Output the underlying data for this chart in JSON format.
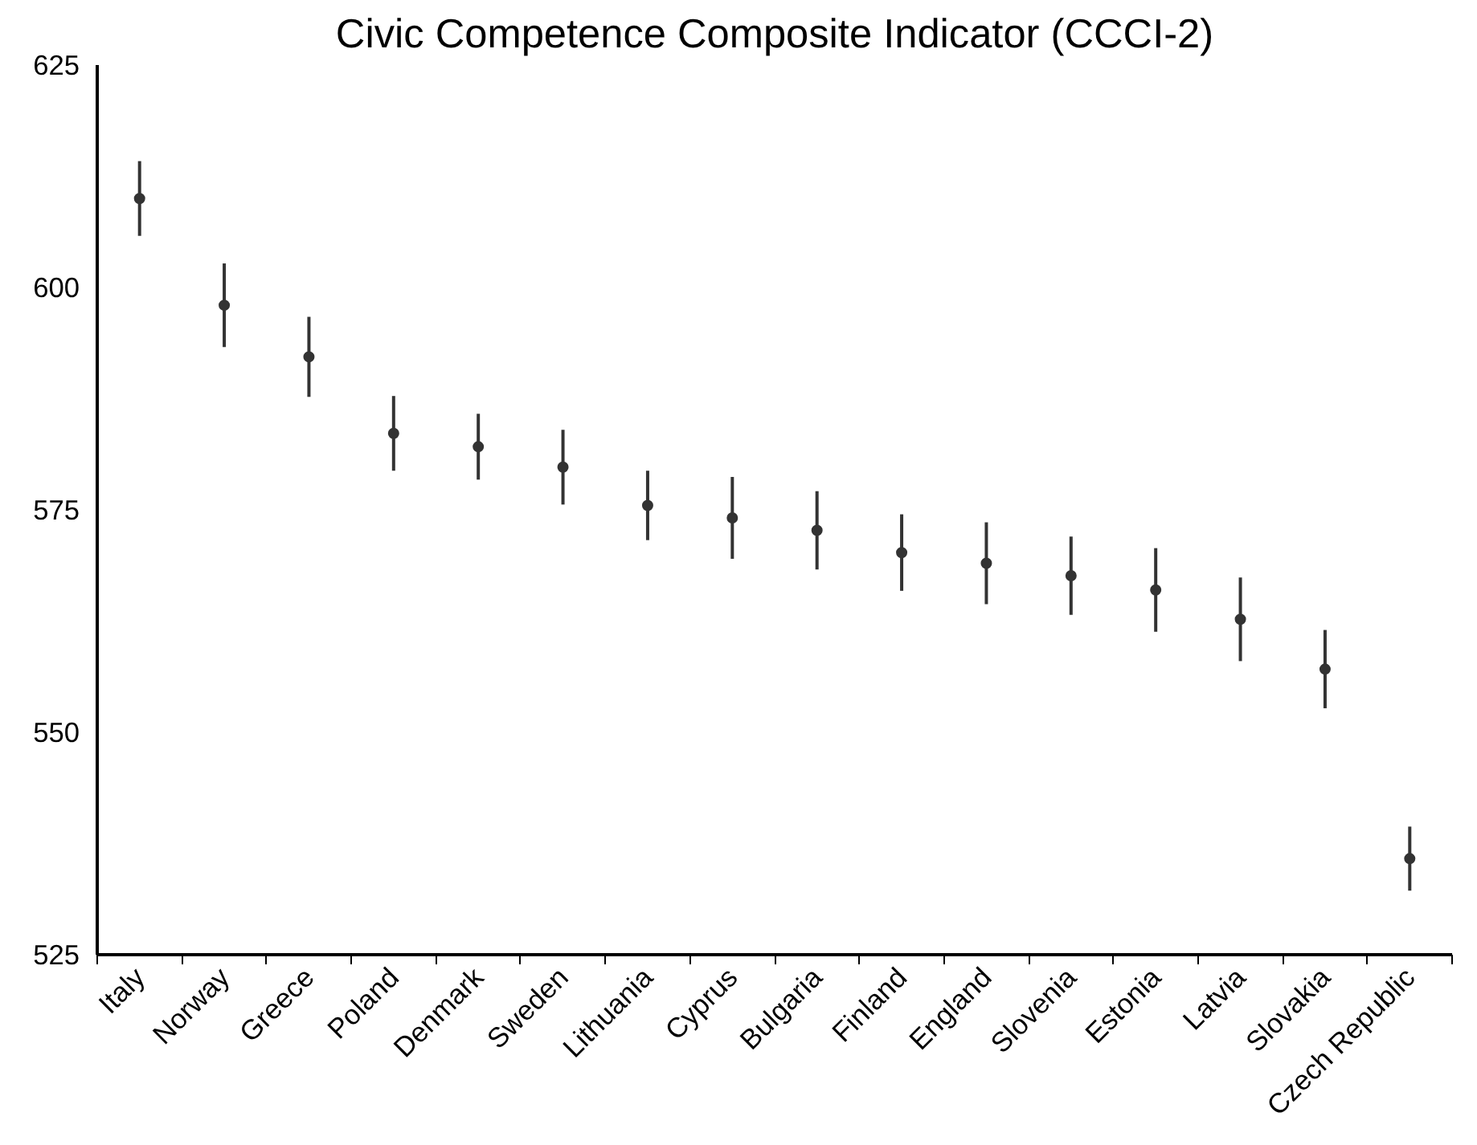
{
  "chart_data": {
    "type": "scatter",
    "title": "Civic Competence Composite Indicator (CCCI-2)",
    "categories": [
      "Italy",
      "Norway",
      "Greece",
      "Poland",
      "Denmark",
      "Sweden",
      "Lithuania",
      "Cyprus",
      "Bulgaria",
      "Finland",
      "England",
      "Slovenia",
      "Estonia",
      "Latvia",
      "Slovakia",
      "Czech Republic"
    ],
    "series": [
      {
        "color": "#333333",
        "values": [
          610.0,
          598.0,
          592.2,
          583.6,
          582.1,
          579.8,
          575.5,
          574.1,
          572.7,
          570.2,
          569.0,
          567.6,
          566.0,
          562.7,
          557.1,
          535.8
        ],
        "errors": [
          4.2,
          4.7,
          4.5,
          4.2,
          3.7,
          4.2,
          3.9,
          4.6,
          4.4,
          4.3,
          4.6,
          4.4,
          4.7,
          4.7,
          4.4,
          3.6
        ]
      }
    ],
    "ylim": [
      525,
      625
    ],
    "yticks": [
      525,
      550,
      575,
      600,
      625
    ],
    "grid": false,
    "marker": "circle"
  }
}
